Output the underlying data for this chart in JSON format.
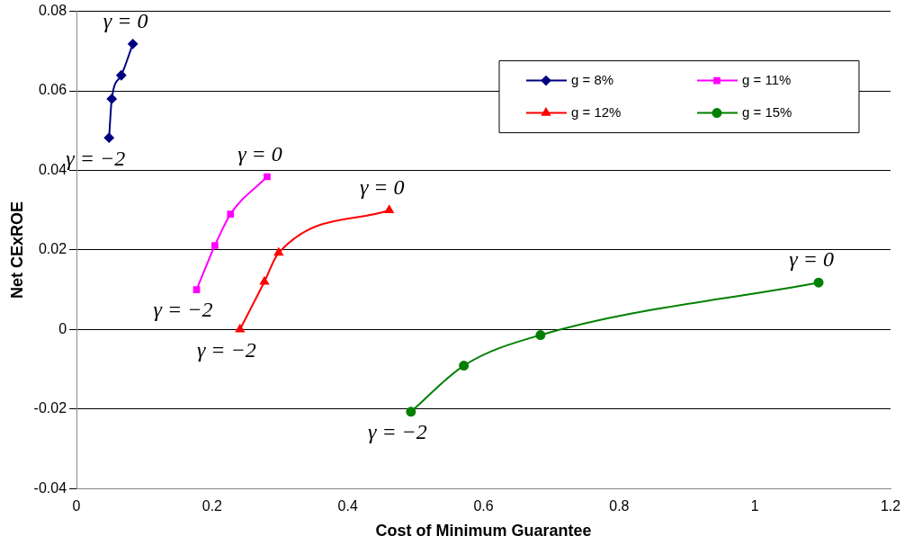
{
  "chart_data": {
    "type": "line",
    "xlabel": "Cost of Minimum Guarantee",
    "ylabel": "Net CExROE",
    "xlim": [
      0,
      1.2
    ],
    "xticks": [
      0,
      0.2,
      0.4,
      0.6,
      0.8,
      1,
      1.2
    ],
    "ylim": [
      -0.04,
      0.08
    ],
    "yticks": [
      -0.04,
      -0.02,
      0,
      0.02,
      0.04,
      0.06,
      0.08
    ],
    "grid": "y",
    "legend": "top right",
    "series": [
      {
        "name": "g = 8%",
        "color": "#000080",
        "marker": "diamond",
        "x": [
          0.048,
          0.052,
          0.066,
          0.083
        ],
        "values": [
          0.0482,
          0.058,
          0.0639,
          0.0718
        ]
      },
      {
        "name": "g = 11%",
        "color": "#ff00ff",
        "marker": "square",
        "x": [
          0.177,
          0.204,
          0.227,
          0.281
        ],
        "values": [
          0.01,
          0.0211,
          0.029,
          0.0384
        ]
      },
      {
        "name": "g = 12%",
        "color": "#ff0000",
        "marker": "triangle",
        "x": [
          0.241,
          0.277,
          0.298,
          0.461
        ],
        "values": [
          0,
          0.012,
          0.0193,
          0.03
        ]
      },
      {
        "name": "g = 15%",
        "color": "#008000",
        "marker": "circle",
        "x": [
          0.493,
          0.571,
          0.684,
          1.094
        ],
        "values": [
          -0.0207,
          -0.0091,
          -0.0014,
          0.0118
        ]
      }
    ],
    "annotations": [
      {
        "text": "γ = 0",
        "x": 0.083,
        "y": 0.0718
      },
      {
        "text": "γ = −2",
        "x": 0.048,
        "y": 0.0482
      },
      {
        "text": "γ = 0",
        "x": 0.281,
        "y": 0.0384
      },
      {
        "text": "γ = −2",
        "x": 0.177,
        "y": 0.01
      },
      {
        "text": "γ = 0",
        "x": 0.461,
        "y": 0.03
      },
      {
        "text": "γ = −2",
        "x": 0.241,
        "y": 0
      },
      {
        "text": "γ = 0",
        "x": 1.094,
        "y": 0.0118
      },
      {
        "text": "γ = −2",
        "x": 0.493,
        "y": -0.0207
      }
    ]
  }
}
